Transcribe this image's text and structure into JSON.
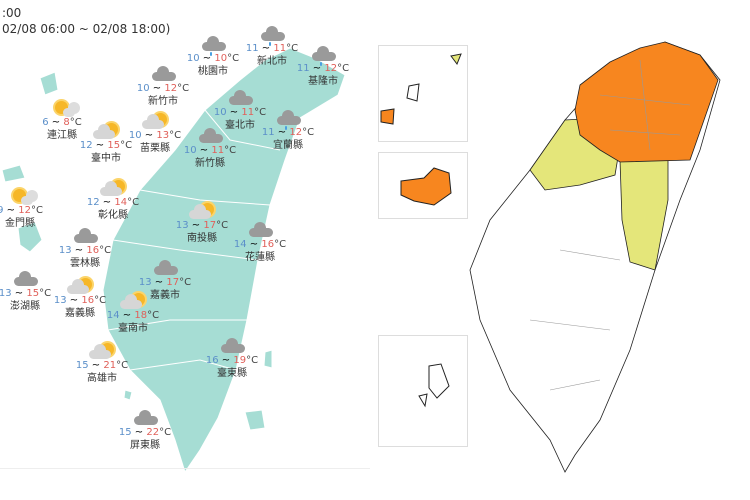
{
  "header": {
    "line1": ":00",
    "line2": "02/08 06:00 ~ 02/08 18:00)"
  },
  "unit": "°C",
  "colors": {
    "land": "#a6ddd4",
    "warning_orange": "#f7861f",
    "advisory_yellow": "#e4e67a",
    "low_temp": "#5b8fc9",
    "high_temp": "#e0605a"
  },
  "stations": [
    {
      "name": "桃園市",
      "low": "10",
      "high": "10",
      "icon": "cloud-rain-icon"
    },
    {
      "name": "新北市",
      "low": "11",
      "high": "11",
      "icon": "cloud-rain-icon"
    },
    {
      "name": "基隆市",
      "low": "11",
      "high": "12",
      "icon": "cloud-rain-icon"
    },
    {
      "name": "新竹市",
      "low": "10",
      "high": "12",
      "icon": "cloudy-icon"
    },
    {
      "name": "臺北市",
      "low": "10",
      "high": "11",
      "icon": "cloudy-icon"
    },
    {
      "name": "連江縣",
      "low": "6",
      "high": "8",
      "icon": "sunny-icon"
    },
    {
      "name": "苗栗縣",
      "low": "10",
      "high": "13",
      "icon": "partly-cloudy-icon"
    },
    {
      "name": "臺中市",
      "low": "12",
      "high": "15",
      "icon": "partly-cloudy-icon"
    },
    {
      "name": "新竹縣",
      "low": "10",
      "high": "11",
      "icon": "cloudy-icon"
    },
    {
      "name": "宜蘭縣",
      "low": "11",
      "high": "12",
      "icon": "cloud-rain-icon"
    },
    {
      "name": "彰化縣",
      "low": "12",
      "high": "14",
      "icon": "partly-cloudy-icon"
    },
    {
      "name": "金門縣",
      "low": "9",
      "high": "12",
      "icon": "sunny-icon"
    },
    {
      "name": "南投縣",
      "low": "13",
      "high": "17",
      "icon": "partly-cloudy-icon"
    },
    {
      "name": "花蓮縣",
      "low": "14",
      "high": "16",
      "icon": "cloudy-icon"
    },
    {
      "name": "雲林縣",
      "low": "13",
      "high": "16",
      "icon": "cloudy-icon"
    },
    {
      "name": "澎湖縣",
      "low": "13",
      "high": "15",
      "icon": "cloudy-icon"
    },
    {
      "name": "嘉義市",
      "low": "13",
      "high": "17",
      "icon": "cloudy-icon"
    },
    {
      "name": "嘉義縣",
      "low": "13",
      "high": "16",
      "icon": "partly-cloudy-icon"
    },
    {
      "name": "臺南市",
      "low": "14",
      "high": "18",
      "icon": "partly-cloudy-icon"
    },
    {
      "name": "高雄市",
      "low": "15",
      "high": "21",
      "icon": "partly-cloudy-icon"
    },
    {
      "name": "臺東縣",
      "low": "16",
      "high": "19",
      "icon": "cloudy-icon"
    },
    {
      "name": "屏東縣",
      "low": "15",
      "high": "22",
      "icon": "cloudy-icon"
    }
  ]
}
